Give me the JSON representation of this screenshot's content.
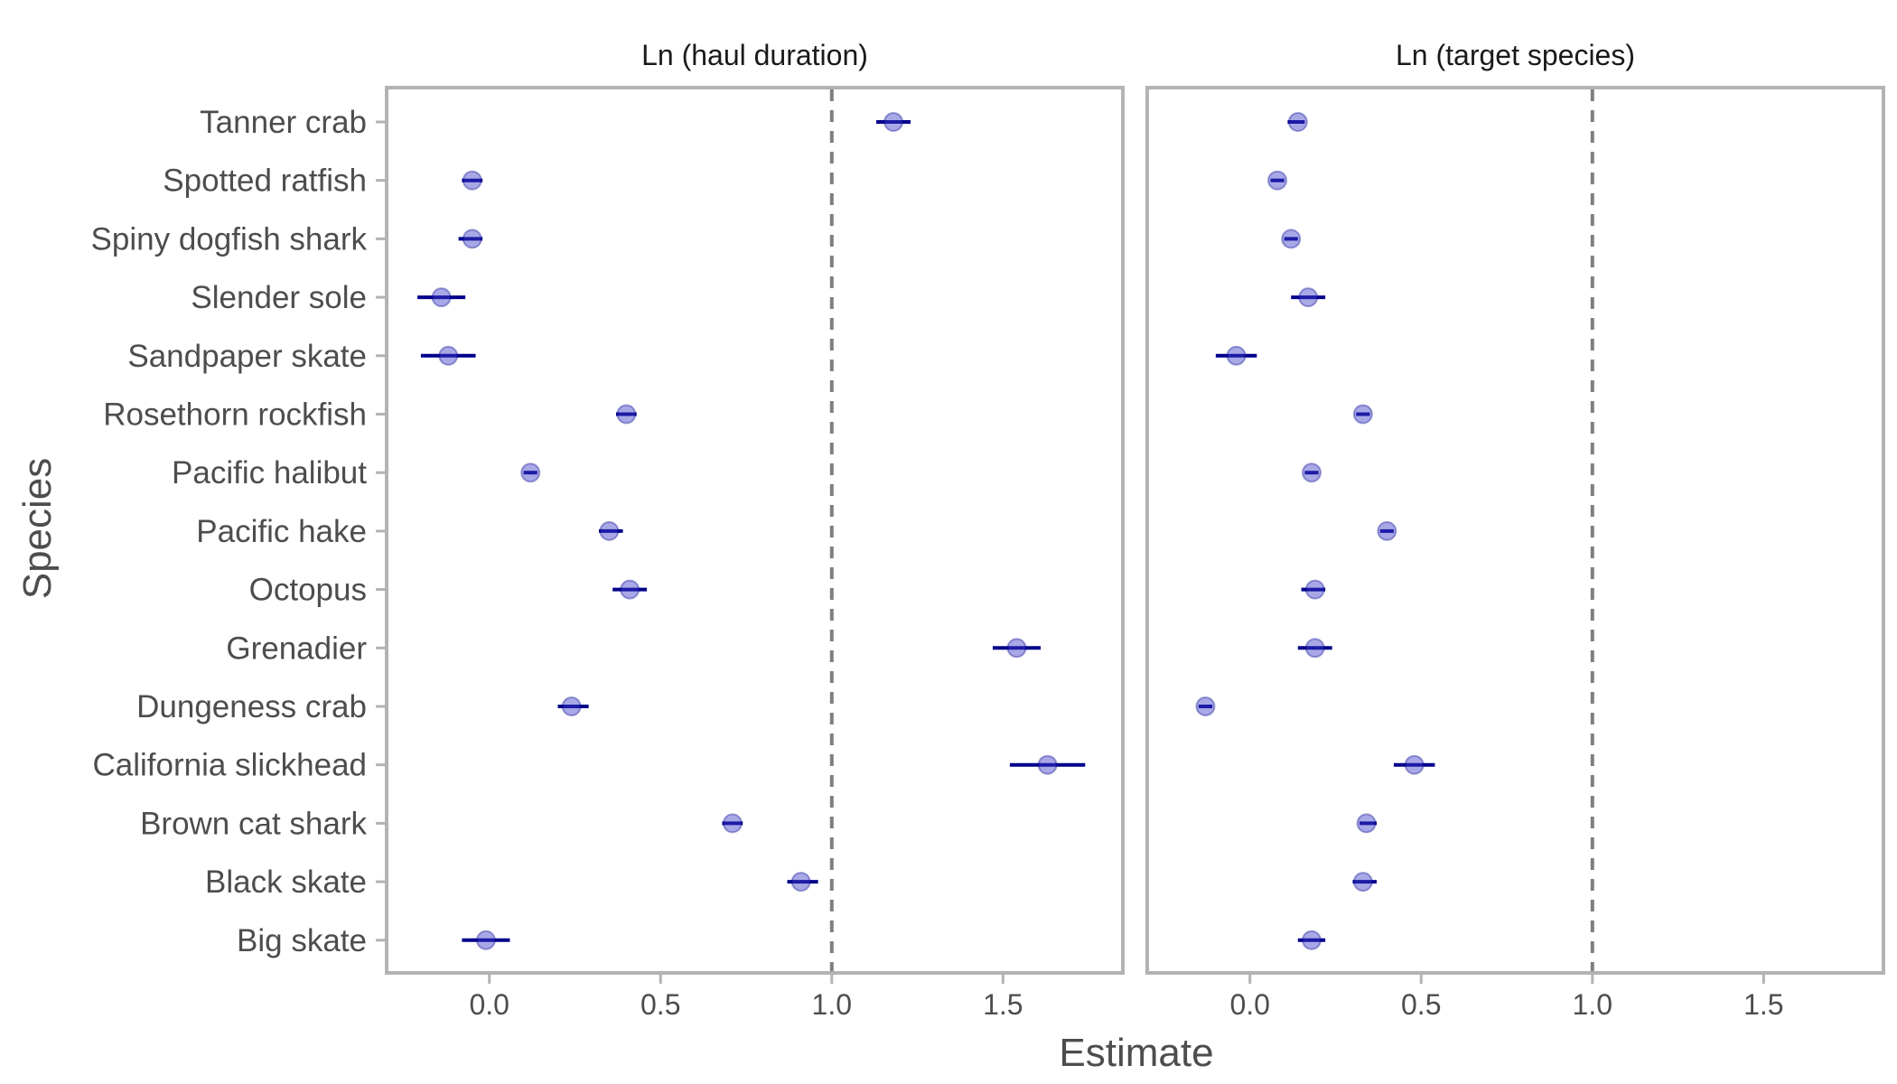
{
  "chart_data": {
    "type": "scatter",
    "xlabel": "Estimate",
    "ylabel": "Species",
    "xlim": [
      -0.3,
      1.85
    ],
    "xticks": [
      "0.0",
      "0.5",
      "1.0",
      "1.5"
    ],
    "reference_line_x": 1.0,
    "grid": false,
    "categories": [
      "Tanner crab",
      "Spotted ratfish",
      "Spiny dogfish shark",
      "Slender sole",
      "Sandpaper skate",
      "Rosethorn rockfish",
      "Pacific halibut",
      "Pacific hake",
      "Octopus",
      "Grenadier",
      "Dungeness crab",
      "California slickhead",
      "Brown cat shark",
      "Black skate",
      "Big skate"
    ],
    "panels": [
      {
        "title": "Ln (haul duration)",
        "estimates": [
          1.18,
          -0.05,
          -0.05,
          -0.14,
          -0.12,
          0.4,
          0.12,
          0.35,
          0.41,
          1.54,
          0.24,
          1.63,
          0.71,
          0.91,
          -0.01
        ],
        "lower": [
          1.13,
          -0.08,
          -0.09,
          -0.21,
          -0.2,
          0.37,
          0.1,
          0.32,
          0.36,
          1.47,
          0.2,
          1.52,
          0.68,
          0.87,
          -0.08
        ],
        "upper": [
          1.23,
          -0.02,
          -0.02,
          -0.07,
          -0.04,
          0.43,
          0.14,
          0.39,
          0.46,
          1.61,
          0.29,
          1.74,
          0.74,
          0.96,
          0.06
        ]
      },
      {
        "title": "Ln (target species)",
        "estimates": [
          0.14,
          0.08,
          0.12,
          0.17,
          -0.04,
          0.33,
          0.18,
          0.4,
          0.19,
          0.19,
          -0.13,
          0.48,
          0.34,
          0.33,
          0.18
        ],
        "lower": [
          0.11,
          0.06,
          0.1,
          0.12,
          -0.1,
          0.31,
          0.16,
          0.38,
          0.15,
          0.14,
          -0.15,
          0.42,
          0.32,
          0.3,
          0.14
        ],
        "upper": [
          0.16,
          0.1,
          0.14,
          0.22,
          0.02,
          0.35,
          0.2,
          0.42,
          0.22,
          0.24,
          -0.11,
          0.54,
          0.37,
          0.37,
          0.22
        ]
      }
    ]
  }
}
